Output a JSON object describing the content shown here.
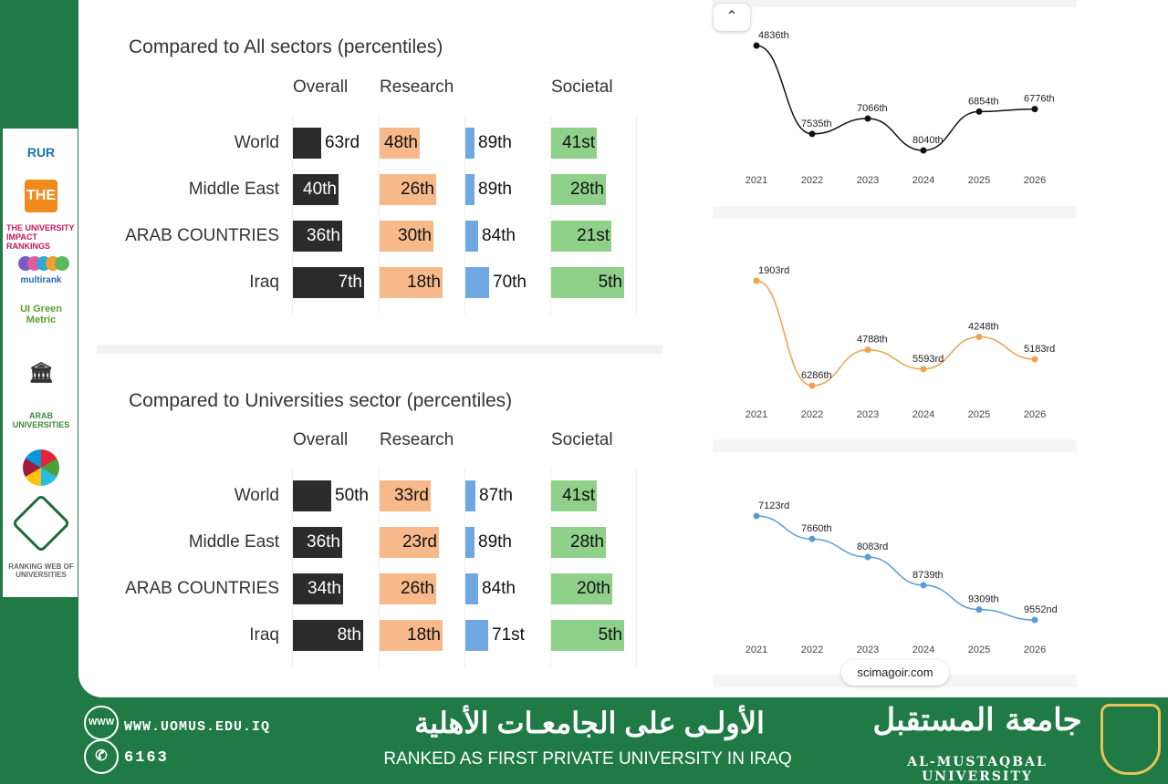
{
  "colors": {
    "green_bg": "#1f7a45",
    "dark_bar": "#2b2b2b",
    "orange_bar": "#f8b98a",
    "blue_bar": "#6fa8e0",
    "green_bar": "#8fd08a"
  },
  "logos": [
    "RUR",
    "THE",
    "THE UNIVERSITY IMPACT RANKINGS",
    "multirank",
    "UI Green Metric",
    "ARAB UNIVERSITIES",
    "GOALS",
    "Federation of Arab Engineers",
    "RANKING WEB OF UNIVERSITIES"
  ],
  "all_sectors": {
    "title": "Compared to All sectors (percentiles)",
    "columns": [
      "Overall",
      "Research",
      "Societal"
    ],
    "rows": [
      {
        "label": "World",
        "overall": "63rd",
        "research": "48th",
        "innovation": "89th",
        "societal": "41st"
      },
      {
        "label": "Middle East",
        "overall": "40th",
        "research": "26th",
        "innovation": "89th",
        "societal": "28th"
      },
      {
        "label": "ARAB COUNTRIES",
        "overall": "36th",
        "research": "30th",
        "innovation": "84th",
        "societal": "21st"
      },
      {
        "label": "Iraq",
        "overall": "7th",
        "research": "18th",
        "innovation": "70th",
        "societal": "5th"
      }
    ]
  },
  "universities_sector": {
    "title": "Compared to Universities sector (percentiles)",
    "columns": [
      "Overall",
      "Research",
      "Societal"
    ],
    "rows": [
      {
        "label": "World",
        "overall": "50th",
        "research": "33rd",
        "innovation": "87th",
        "societal": "41st"
      },
      {
        "label": "Middle East",
        "overall": "36th",
        "research": "23rd",
        "innovation": "89th",
        "societal": "28th"
      },
      {
        "label": "ARAB COUNTRIES",
        "overall": "34th",
        "research": "26th",
        "innovation": "84th",
        "societal": "20th"
      },
      {
        "label": "Iraq",
        "overall": "8th",
        "research": "18th",
        "innovation": "71st",
        "societal": "5th"
      }
    ]
  },
  "chart_data": [
    {
      "type": "line",
      "color": "#111111",
      "x": [
        "2021",
        "2022",
        "2023",
        "2024",
        "2025",
        "2026"
      ],
      "values": [
        4836,
        7535,
        7066,
        8040,
        6854,
        6776
      ],
      "labels": [
        "4836th",
        "7535th",
        "7066th",
        "8040th",
        "6854th",
        "6776th"
      ]
    },
    {
      "type": "line",
      "color": "#f0a050",
      "x": [
        "2021",
        "2022",
        "2023",
        "2024",
        "2025",
        "2026"
      ],
      "values": [
        1903,
        6286,
        4788,
        5593,
        4248,
        5183
      ],
      "labels": [
        "1903rd",
        "6286th",
        "4788th",
        "5593rd",
        "4248th",
        "5183rd"
      ]
    },
    {
      "type": "line",
      "color": "#5b9bd5",
      "x": [
        "2021",
        "2022",
        "2023",
        "2024",
        "2025",
        "2026"
      ],
      "values": [
        7123,
        7660,
        8083,
        8739,
        9309,
        9552
      ],
      "labels": [
        "7123rd",
        "7660th",
        "8083rd",
        "8739th",
        "9309th",
        "9552nd"
      ]
    }
  ],
  "ui": {
    "scroll_up_icon": "chevron-up-icon",
    "source": "scimagoir.com"
  },
  "footer": {
    "website": "WWW.UOMUS.EDU.IQ",
    "phone": "6163",
    "arabic_headline": "الأولـى على الجامعـات الأهلية",
    "english_headline": "RANKED AS FIRST PRIVATE UNIVERSITY IN IRAQ",
    "arabic_name": "جامعة المستقبل",
    "university_name": "AL-MUSTAQBAL UNIVERSITY",
    "www_icon_text": "WWW"
  }
}
